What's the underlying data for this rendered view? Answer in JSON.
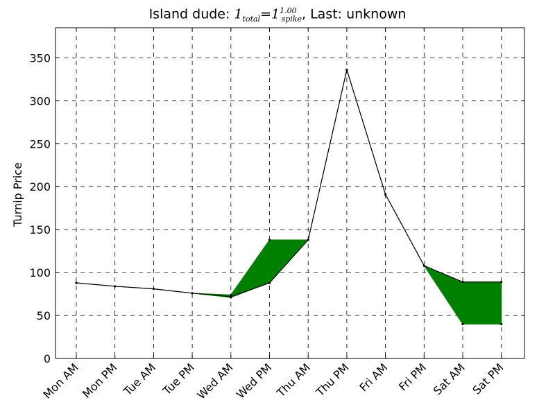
{
  "chart_data": {
    "type": "line",
    "title": {
      "prefix": "Island dude: ",
      "total_base": "1",
      "total_sub": "total",
      "equals": "=",
      "spike_base": "1",
      "spike_sup": "1.00",
      "spike_sub": "spike",
      "suffix": ", Last: unknown"
    },
    "ylabel": "Turnip Price",
    "xlabel": "",
    "ylim": [
      0,
      385
    ],
    "yticks": [
      0,
      50,
      100,
      150,
      200,
      250,
      300,
      350
    ],
    "grid": true,
    "categories": [
      "Mon AM",
      "Mon PM",
      "Tue AM",
      "Tue PM",
      "Wed AM",
      "Wed PM",
      "Thu AM",
      "Thu PM",
      "Fri AM",
      "Fri PM",
      "Sat AM",
      "Sat PM"
    ],
    "series": [
      {
        "values": [
          88,
          84,
          81,
          76,
          72,
          88,
          138,
          336,
          191,
          108,
          89,
          89
        ]
      }
    ],
    "range_band": {
      "color": "#008000",
      "lower": [
        88,
        84,
        81,
        76,
        71,
        88,
        138,
        336,
        191,
        108,
        40,
        40
      ],
      "upper": [
        88,
        84,
        81,
        76,
        74,
        138,
        138,
        336,
        191,
        108,
        89,
        89
      ]
    }
  }
}
